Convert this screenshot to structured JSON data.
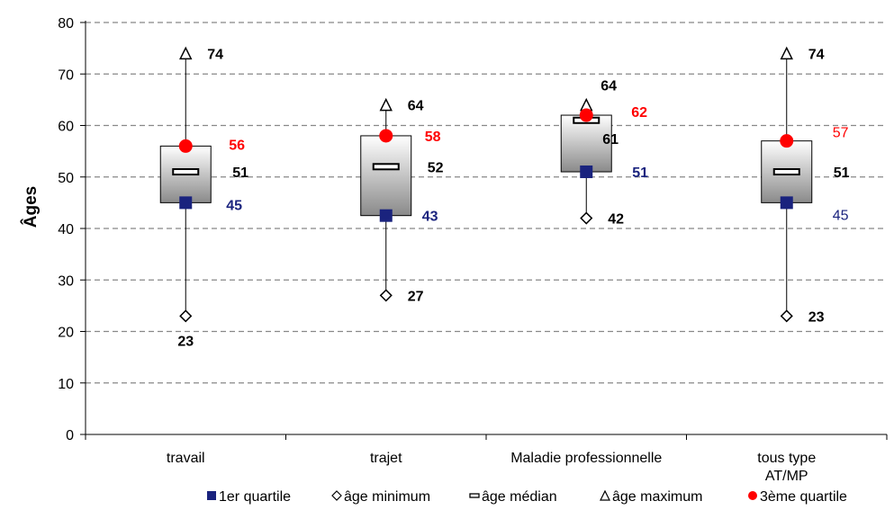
{
  "chart_data": {
    "type": "box",
    "ylabel": "Âges",
    "ylim": [
      0,
      80
    ],
    "yticks": [
      0,
      10,
      20,
      30,
      40,
      50,
      60,
      70,
      80
    ],
    "grid": true,
    "legend_position": "bottom",
    "categories": [
      {
        "lines": [
          "travail"
        ]
      },
      {
        "lines": [
          "trajet"
        ]
      },
      {
        "lines": [
          "Maladie professionnelle"
        ]
      },
      {
        "lines": [
          "tous type",
          "AT/MP"
        ]
      }
    ],
    "series": [
      {
        "name": "1er quartile",
        "values": [
          45,
          42.5,
          51,
          45
        ],
        "labels": [
          "45",
          "43",
          "51",
          "45"
        ],
        "color": "#1a237e"
      },
      {
        "name": "âge minimum",
        "values": [
          23,
          27,
          42,
          23
        ],
        "labels": [
          "23",
          "27",
          "42",
          "23"
        ],
        "color": "#000000"
      },
      {
        "name": "âge médian",
        "values": [
          51,
          52,
          61,
          51
        ],
        "labels": [
          "51",
          "52",
          "61",
          "51"
        ],
        "color": "#000000"
      },
      {
        "name": "âge maximum",
        "values": [
          74,
          64,
          64,
          74
        ],
        "labels": [
          "74",
          "64",
          "64",
          "74"
        ],
        "color": "#000000"
      },
      {
        "name": "3ème quartile",
        "values": [
          56,
          58,
          62,
          57
        ],
        "labels": [
          "56",
          "58",
          "62",
          "57"
        ],
        "color": "#ff0000"
      }
    ],
    "colors": {
      "quartile1": "#1a237e",
      "quartile3": "#ff0000",
      "grid": "#888888",
      "box_top": "#ffffff",
      "box_bottom": "#8a8a8a"
    }
  }
}
